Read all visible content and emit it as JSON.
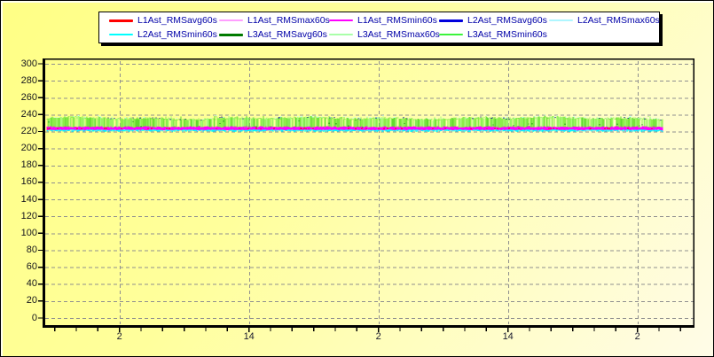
{
  "legend": {
    "items": [
      {
        "label": "L1Ast_RMSavg60s",
        "color": "#ff0000",
        "thick": true
      },
      {
        "label": "L1Ast_RMSmax60s",
        "color": "#ff9eff",
        "thick": false
      },
      {
        "label": "L1Ast_RMSmin60s",
        "color": "#ff00ff",
        "thick": false
      },
      {
        "label": "L2Ast_RMSavg60s",
        "color": "#0000dd",
        "thick": true
      },
      {
        "label": "L2Ast_RMSmax60s",
        "color": "#aef6ff",
        "thick": false
      },
      {
        "label": "L2Ast_RMSmin60s",
        "color": "#00ffff",
        "thick": false
      },
      {
        "label": "L3Ast_RMSavg60s",
        "color": "#007a00",
        "thick": true
      },
      {
        "label": "L3Ast_RMSmax60s",
        "color": "#a9ffa9",
        "thick": false
      },
      {
        "label": "L3Ast_RMSmin60s",
        "color": "#3cf43c",
        "thick": false
      }
    ]
  },
  "axes": {
    "y_ticks": [
      "300",
      "280",
      "260",
      "240",
      "220",
      "200",
      "180",
      "160",
      "140",
      "120",
      "100",
      "80",
      "60",
      "40",
      "20",
      "0"
    ],
    "x_ticks": [
      "2",
      "14",
      "2",
      "14",
      "2"
    ]
  },
  "colors": {
    "background_top": "#ffff85",
    "background_bottom": "#fffce8",
    "plot_border": "#000000",
    "grid": "#8f8f8f",
    "legend_background": "#ffffff",
    "legend_text": "#0000a8",
    "tick_label": "#15151d"
  },
  "chart_data": {
    "type": "line",
    "title": "",
    "xlabel": "",
    "ylabel": "",
    "x_tick_labels": [
      "2",
      "14",
      "2",
      "14",
      "2"
    ],
    "x_major_tick_hours": 12,
    "x_minor_tick_hours": 2,
    "ylim": [
      0,
      300
    ],
    "y_tick_step": 20,
    "grid": true,
    "legend_position": "top-center",
    "description": "Nine overlapping 60s RMS voltage traces forming a dense noisy band between roughly 219 V and 238 V across about 2.5 days; the rest of the 0-300 axis is empty.",
    "series": [
      {
        "name": "L1Ast_RMSavg60s",
        "color": "#ff0000",
        "approx_mean": 228.5,
        "approx_range": [
          226,
          231
        ]
      },
      {
        "name": "L1Ast_RMSmax60s",
        "color": "#ff9eff",
        "approx_mean": 231.0,
        "approx_range": [
          228,
          234
        ]
      },
      {
        "name": "L1Ast_RMSmin60s",
        "color": "#ff00ff",
        "approx_mean": 224.0,
        "approx_range": [
          221,
          227
        ]
      },
      {
        "name": "L2Ast_RMSavg60s",
        "color": "#0000dd",
        "approx_mean": 227.5,
        "approx_range": [
          225,
          230
        ]
      },
      {
        "name": "L2Ast_RMSmax60s",
        "color": "#aef6ff",
        "approx_mean": 230.0,
        "approx_range": [
          227,
          233
        ]
      },
      {
        "name": "L2Ast_RMSmin60s",
        "color": "#00ffff",
        "approx_mean": 221.5,
        "approx_range": [
          219,
          225
        ]
      },
      {
        "name": "L3Ast_RMSavg60s",
        "color": "#007a00",
        "approx_mean": 230.5,
        "approx_range": [
          228,
          233
        ]
      },
      {
        "name": "L3Ast_RMSmax60s",
        "color": "#a9ffa9",
        "approx_mean": 235.0,
        "approx_range": [
          230,
          238
        ]
      },
      {
        "name": "L3Ast_RMSmin60s",
        "color": "#3cf43c",
        "approx_mean": 226.0,
        "approx_range": [
          223,
          229
        ]
      }
    ],
    "band": {
      "top_typical": 236.0,
      "top_peak": 238.5,
      "green_bottom": 225.5,
      "magenta_top": 226.0,
      "magenta_bottom": 222.0,
      "cyan_top": 223.3,
      "cyan_bottom": 219.6,
      "gap_probability": 0.14
    }
  }
}
